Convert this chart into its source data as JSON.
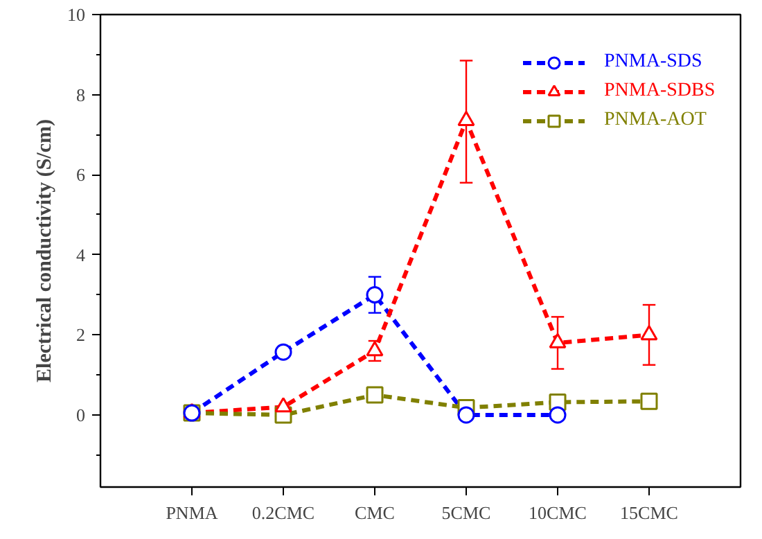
{
  "chart_data": {
    "type": "line",
    "ylabel": "Electrical conductivity (S/cm)",
    "categories": [
      "PNMA",
      "0.2CMC",
      "CMC",
      "5CMC",
      "10CMC",
      "15CMC"
    ],
    "ylim": [
      -1.8,
      10
    ],
    "yticks": [
      0,
      2,
      4,
      6,
      8,
      10
    ],
    "series": [
      {
        "name": "PNMA-SDS",
        "color": "#0000ff",
        "marker": "circle",
        "values": [
          0.05,
          1.57,
          3.0,
          0.0,
          0.0,
          null
        ],
        "errors": [
          null,
          null,
          0.45,
          null,
          null,
          null
        ]
      },
      {
        "name": "PNMA-SDBS",
        "color": "#ff0000",
        "marker": "triangle",
        "values": [
          0.05,
          0.2,
          1.6,
          7.35,
          1.8,
          2.0
        ],
        "errors": [
          null,
          null,
          [
            1.35,
            1.85
          ],
          [
            5.8,
            8.85
          ],
          [
            1.15,
            2.45
          ],
          [
            1.25,
            2.75
          ]
        ]
      },
      {
        "name": "PNMA-AOT",
        "color": "#808000",
        "marker": "square",
        "values": [
          0.05,
          0.0,
          0.5,
          0.18,
          0.32,
          0.34
        ],
        "errors": [
          null,
          null,
          null,
          null,
          null,
          null
        ]
      }
    ],
    "line_style": "dashed",
    "grid": false,
    "legend": "top right"
  }
}
